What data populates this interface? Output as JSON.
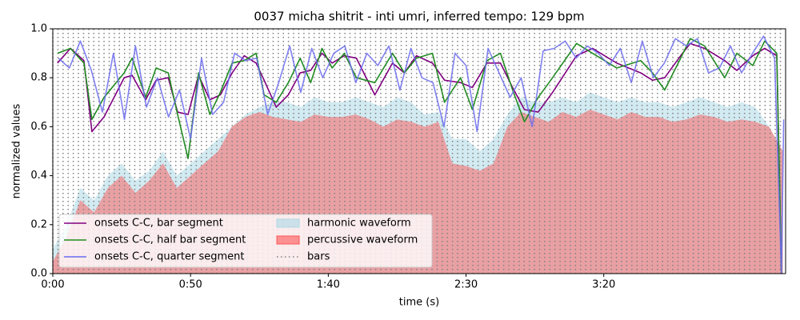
{
  "chart_data": {
    "type": "line",
    "title": "0037 micha shitrit - inti umri, inferred tempo: 129 bpm",
    "x_label": "time (s)",
    "y_label": "normalized values",
    "xlim": [
      0,
      266
    ],
    "ylim": [
      0,
      1
    ],
    "xticks": [
      {
        "value": 0,
        "label": "0:00"
      },
      {
        "value": 50,
        "label": "0:50"
      },
      {
        "value": 100,
        "label": "1:40"
      },
      {
        "value": 150,
        "label": "2:30"
      },
      {
        "value": 200,
        "label": "3:20"
      }
    ],
    "yticks": [
      {
        "value": 0,
        "label": "0.0"
      },
      {
        "value": 0.2,
        "label": "0.2"
      },
      {
        "value": 0.4,
        "label": "0.4"
      },
      {
        "value": 0.6,
        "label": "0.6"
      },
      {
        "value": 0.8,
        "label": "0.8"
      },
      {
        "value": 1.0,
        "label": "1.0"
      }
    ],
    "legend": "lower left",
    "waveforms": [
      {
        "name": "harmonic waveform",
        "color": "#add8e6",
        "x": [
          0,
          5,
          10,
          15,
          20,
          25,
          30,
          35,
          40,
          45,
          50,
          55,
          60,
          65,
          70,
          75,
          80,
          85,
          90,
          95,
          100,
          105,
          110,
          115,
          120,
          125,
          130,
          135,
          140,
          145,
          150,
          155,
          160,
          165,
          170,
          175,
          180,
          185,
          190,
          195,
          200,
          205,
          210,
          215,
          220,
          225,
          230,
          235,
          240,
          245,
          250,
          255,
          260,
          265
        ],
        "values": [
          0.1,
          0.2,
          0.35,
          0.3,
          0.4,
          0.45,
          0.38,
          0.42,
          0.5,
          0.4,
          0.45,
          0.5,
          0.55,
          0.6,
          0.65,
          0.68,
          0.7,
          0.7,
          0.68,
          0.72,
          0.7,
          0.7,
          0.72,
          0.7,
          0.68,
          0.72,
          0.7,
          0.65,
          0.66,
          0.55,
          0.55,
          0.5,
          0.55,
          0.65,
          0.72,
          0.7,
          0.7,
          0.72,
          0.7,
          0.74,
          0.72,
          0.7,
          0.72,
          0.7,
          0.7,
          0.68,
          0.7,
          0.72,
          0.7,
          0.68,
          0.7,
          0.68,
          0.6,
          0.5
        ]
      },
      {
        "name": "percussive waveform",
        "color": "#ff5555",
        "x": [
          0,
          5,
          10,
          15,
          20,
          25,
          30,
          35,
          40,
          45,
          50,
          55,
          60,
          65,
          70,
          75,
          80,
          85,
          90,
          95,
          100,
          105,
          110,
          115,
          120,
          125,
          130,
          135,
          140,
          145,
          150,
          155,
          160,
          165,
          170,
          175,
          180,
          185,
          190,
          195,
          200,
          205,
          210,
          215,
          220,
          225,
          230,
          235,
          240,
          245,
          250,
          255,
          260,
          265
        ],
        "values": [
          0.05,
          0.15,
          0.3,
          0.25,
          0.35,
          0.4,
          0.33,
          0.38,
          0.45,
          0.35,
          0.4,
          0.45,
          0.5,
          0.6,
          0.64,
          0.66,
          0.64,
          0.63,
          0.62,
          0.65,
          0.64,
          0.64,
          0.65,
          0.63,
          0.6,
          0.63,
          0.62,
          0.6,
          0.62,
          0.45,
          0.44,
          0.42,
          0.45,
          0.6,
          0.66,
          0.64,
          0.62,
          0.66,
          0.64,
          0.67,
          0.65,
          0.63,
          0.66,
          0.64,
          0.64,
          0.62,
          0.63,
          0.65,
          0.64,
          0.62,
          0.63,
          0.62,
          0.6,
          0.5
        ]
      }
    ],
    "bars": {
      "name": "bars",
      "color": "#808080",
      "x": [
        0,
        1.86,
        3.72,
        5.58,
        7.44,
        9.3,
        11.16,
        13.02,
        14.88,
        16.74,
        18.6,
        20.46,
        22.32,
        24.18,
        26.04,
        27.9,
        29.76,
        31.62,
        33.48,
        35.34,
        37.2,
        39.06,
        40.92,
        42.78,
        44.64,
        46.5,
        48.36,
        50.22,
        52.08,
        53.94,
        55.8,
        57.66,
        59.52,
        61.38,
        63.24,
        65.1,
        66.96,
        68.82,
        70.68,
        72.54,
        74.4,
        76.26,
        78.12,
        79.98,
        81.84,
        83.7,
        85.56,
        87.42,
        89.28,
        91.14,
        93,
        94.86,
        96.72,
        98.58,
        100.44,
        102.3,
        104.16,
        106.02,
        107.88,
        109.74,
        111.6,
        113.46,
        115.32,
        117.18,
        119.04,
        120.9,
        122.76,
        124.62,
        126.48,
        128.34,
        130.2,
        132.06,
        133.92,
        135.78,
        137.64,
        139.5,
        141.36,
        143.22,
        145.08,
        146.94,
        148.8,
        150.66,
        152.52,
        154.38,
        156.24,
        158.1,
        159.96,
        161.82,
        163.68,
        165.54,
        167.4,
        169.26,
        171.12,
        172.98,
        174.84,
        176.7,
        178.56,
        180.42,
        182.28,
        184.14,
        186,
        187.86,
        189.72,
        191.58,
        193.44,
        195.3,
        197.16,
        199.02,
        200.88,
        202.74,
        204.6,
        206.46,
        208.32,
        210.18,
        212.04,
        213.9,
        215.76,
        217.62,
        219.48,
        221.34,
        223.2,
        225.06,
        226.92,
        228.78,
        230.64,
        232.5,
        234.36,
        236.22,
        238.08,
        239.94,
        241.8,
        243.66,
        245.52,
        247.38,
        249.24,
        251.1,
        252.96,
        254.82,
        256.68,
        258.54,
        260.4,
        262.26,
        264.12
      ]
    },
    "series": [
      {
        "name": "onsets C-C, bar segment",
        "color": "#800080",
        "x": [
          1.7,
          6.4,
          11.3,
          14.2,
          18.6,
          25.9,
          28.8,
          33.7,
          37.5,
          41.9,
          45.3,
          49.1,
          52.9,
          57.0,
          60.8,
          65.1,
          69.5,
          73.8,
          76.7,
          81.1,
          85.5,
          89.8,
          93.6,
          97.7,
          101.4,
          105.8,
          110.2,
          116.9,
          123.3,
          127.6,
          132.0,
          137.8,
          142.2,
          148.0,
          152.3,
          157.6,
          162.5,
          166.9,
          171.2,
          176.2,
          181.4,
          190.1,
          195.9,
          204.7,
          213.4,
          217.7,
          222.1,
          227.9,
          231.4,
          236.6,
          243.9,
          248.3,
          254.1,
          258.4,
          262.8,
          264.5
        ],
        "values": [
          0.86,
          0.92,
          0.87,
          0.58,
          0.64,
          0.8,
          0.81,
          0.71,
          0.79,
          0.8,
          0.66,
          0.65,
          0.81,
          0.71,
          0.73,
          0.82,
          0.89,
          0.86,
          0.79,
          0.68,
          0.73,
          0.82,
          0.83,
          0.9,
          0.86,
          0.89,
          0.88,
          0.73,
          0.86,
          0.82,
          0.89,
          0.86,
          0.79,
          0.78,
          0.76,
          0.86,
          0.86,
          0.76,
          0.67,
          0.66,
          0.74,
          0.89,
          0.92,
          0.86,
          0.82,
          0.79,
          0.8,
          0.89,
          0.94,
          0.92,
          0.87,
          0.83,
          0.89,
          0.92,
          0.89,
          0
        ]
      },
      {
        "name": "onsets C-C, half bar segment",
        "color": "#228b22",
        "x": [
          1.7,
          6.4,
          11.3,
          14.2,
          18.6,
          25.9,
          28.8,
          33.7,
          37.5,
          41.9,
          45.3,
          49.1,
          52.9,
          57.0,
          60.8,
          65.1,
          69.5,
          73.8,
          76.7,
          81.1,
          85.5,
          89.8,
          93.6,
          97.7,
          101.4,
          105.8,
          110.2,
          116.9,
          123.3,
          127.6,
          132.0,
          137.8,
          142.2,
          148.0,
          152.3,
          157.6,
          162.5,
          166.9,
          171.2,
          176.2,
          181.4,
          190.1,
          195.9,
          204.7,
          213.4,
          217.7,
          222.1,
          227.9,
          231.4,
          236.6,
          243.9,
          248.3,
          254.1,
          258.4,
          262.8,
          264.5
        ],
        "values": [
          0.9,
          0.92,
          0.86,
          0.63,
          0.72,
          0.82,
          0.88,
          0.72,
          0.84,
          0.82,
          0.65,
          0.47,
          0.82,
          0.65,
          0.74,
          0.86,
          0.87,
          0.9,
          0.73,
          0.7,
          0.78,
          0.88,
          0.78,
          0.92,
          0.84,
          0.9,
          0.8,
          0.78,
          0.9,
          0.82,
          0.88,
          0.9,
          0.7,
          0.8,
          0.67,
          0.87,
          0.9,
          0.75,
          0.62,
          0.72,
          0.8,
          0.94,
          0.9,
          0.84,
          0.87,
          0.82,
          0.75,
          0.88,
          0.96,
          0.93,
          0.8,
          0.9,
          0.85,
          0.95,
          0.9,
          0
        ]
      },
      {
        "name": "onsets C-C, quarter segment",
        "color": "#6b6bf0",
        "x": [
          2,
          6,
          10,
          14,
          18,
          22,
          26,
          30,
          34,
          38,
          42,
          46,
          50,
          54,
          58,
          62,
          66,
          70,
          74,
          78,
          82,
          86,
          90,
          94,
          98,
          102,
          106,
          110,
          114,
          118,
          122,
          126,
          130,
          134,
          138,
          142,
          146,
          150,
          154,
          158,
          162,
          166,
          170,
          174,
          178,
          182,
          186,
          190,
          194,
          198,
          202,
          206,
          210,
          214,
          218,
          222,
          226,
          230,
          234,
          238,
          242,
          246,
          250,
          254,
          258,
          262,
          264.5,
          265.3
        ],
        "values": [
          0.88,
          0.84,
          0.95,
          0.83,
          0.66,
          0.9,
          0.63,
          0.93,
          0.68,
          0.8,
          0.64,
          0.75,
          0.55,
          0.88,
          0.65,
          0.7,
          0.9,
          0.87,
          0.88,
          0.65,
          0.78,
          0.93,
          0.74,
          0.92,
          0.8,
          0.9,
          0.93,
          0.78,
          0.9,
          0.85,
          0.93,
          0.75,
          0.92,
          0.8,
          0.78,
          0.6,
          0.9,
          0.85,
          0.58,
          0.92,
          0.82,
          0.72,
          0.8,
          0.6,
          0.91,
          0.92,
          0.95,
          0.88,
          0.93,
          0.9,
          0.85,
          0.92,
          0.78,
          0.95,
          0.8,
          0.86,
          0.96,
          0.93,
          0.96,
          0.82,
          0.84,
          0.93,
          0.82,
          0.9,
          0.97,
          0.88,
          0,
          0.63
        ]
      }
    ]
  }
}
